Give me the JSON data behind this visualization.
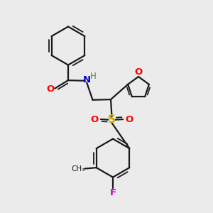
{
  "bg_color": "#ebebeb",
  "line_color": "#1a1a1a",
  "bond_lw": 1.6,
  "colors": {
    "O": "#ff0000",
    "N": "#0000cd",
    "S": "#ccaa00",
    "F": "#cc00cc",
    "H": "#2e8b57",
    "C": "#1a1a1a"
  }
}
